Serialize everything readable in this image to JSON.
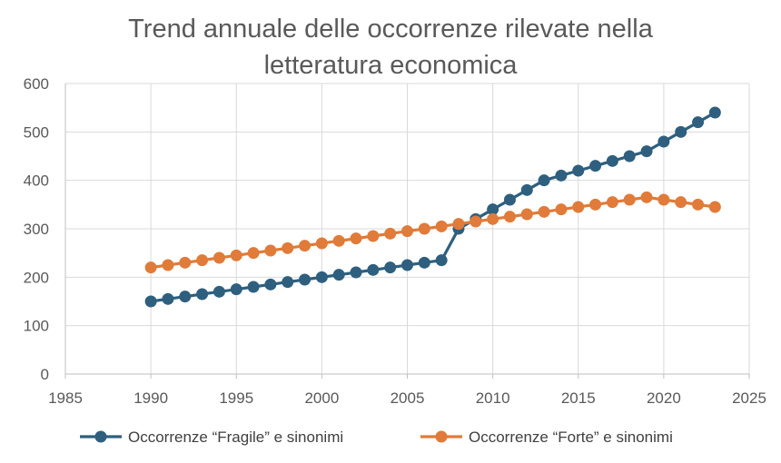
{
  "chart_data": {
    "type": "line",
    "title_line1": "Trend annuale delle occorrenze rilevate nella",
    "title_line2": "letteratura economica",
    "xlabel": "",
    "ylabel": "",
    "xlim": [
      1985,
      2025
    ],
    "ylim": [
      0,
      600
    ],
    "xticks": [
      1985,
      1990,
      1995,
      2000,
      2005,
      2010,
      2015,
      2020,
      2025
    ],
    "yticks": [
      0,
      100,
      200,
      300,
      400,
      500,
      600
    ],
    "grid": true,
    "legend_position": "bottom",
    "x": [
      1990,
      1991,
      1992,
      1993,
      1994,
      1995,
      1996,
      1997,
      1998,
      1999,
      2000,
      2001,
      2002,
      2003,
      2004,
      2005,
      2006,
      2007,
      2008,
      2009,
      2010,
      2011,
      2012,
      2013,
      2014,
      2015,
      2016,
      2017,
      2018,
      2019,
      2020,
      2021,
      2022,
      2023
    ],
    "series": [
      {
        "name": "Occorrenze “Fragile” e sinonimi",
        "color": "#2e5f7f",
        "values": [
          150,
          155,
          160,
          165,
          170,
          175,
          180,
          185,
          190,
          195,
          200,
          205,
          210,
          215,
          220,
          225,
          230,
          235,
          300,
          320,
          340,
          360,
          380,
          400,
          410,
          420,
          430,
          440,
          450,
          460,
          480,
          500,
          520,
          540
        ]
      },
      {
        "name": "Occorrenze “Forte” e sinonimi",
        "color": "#e07b39",
        "values": [
          220,
          225,
          230,
          235,
          240,
          245,
          250,
          255,
          260,
          265,
          270,
          275,
          280,
          285,
          290,
          295,
          300,
          305,
          310,
          315,
          320,
          325,
          330,
          335,
          340,
          345,
          350,
          355,
          360,
          365,
          360,
          355,
          350,
          345
        ]
      }
    ]
  }
}
